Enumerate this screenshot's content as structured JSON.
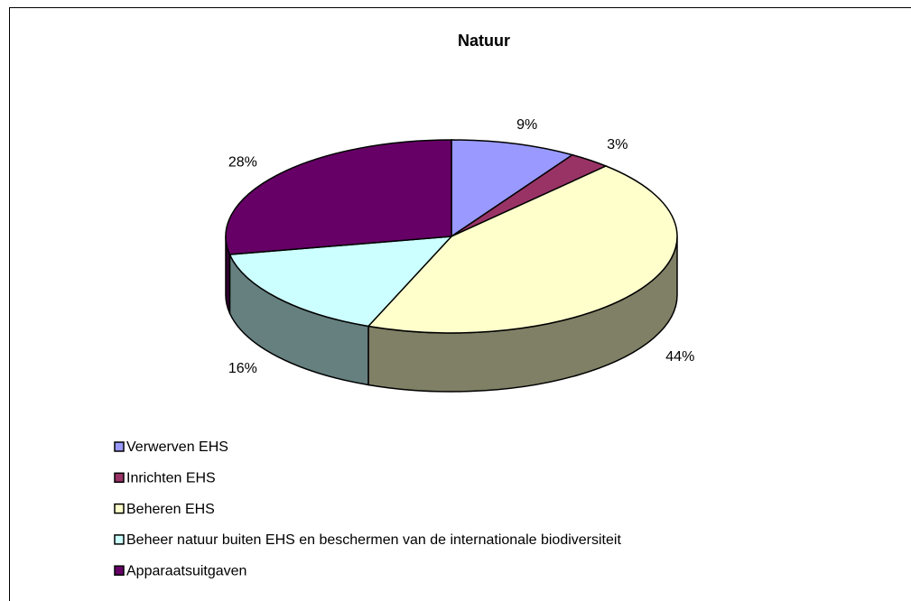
{
  "chart_data": {
    "type": "pie",
    "title": "Natuur",
    "categories": [
      "Verwerven EHS",
      "Inrichten EHS",
      "Beheren EHS",
      "Beheer natuur buiten EHS en beschermen van de internationale biodiversiteit",
      "Apparaatsuitgaven"
    ],
    "values": [
      9,
      3,
      44,
      16,
      28
    ],
    "value_labels": [
      "9%",
      "3%",
      "44%",
      "16%",
      "28%"
    ],
    "colors": [
      "#9999ff",
      "#993366",
      "#ffffcc",
      "#ccffff",
      "#660066"
    ]
  }
}
